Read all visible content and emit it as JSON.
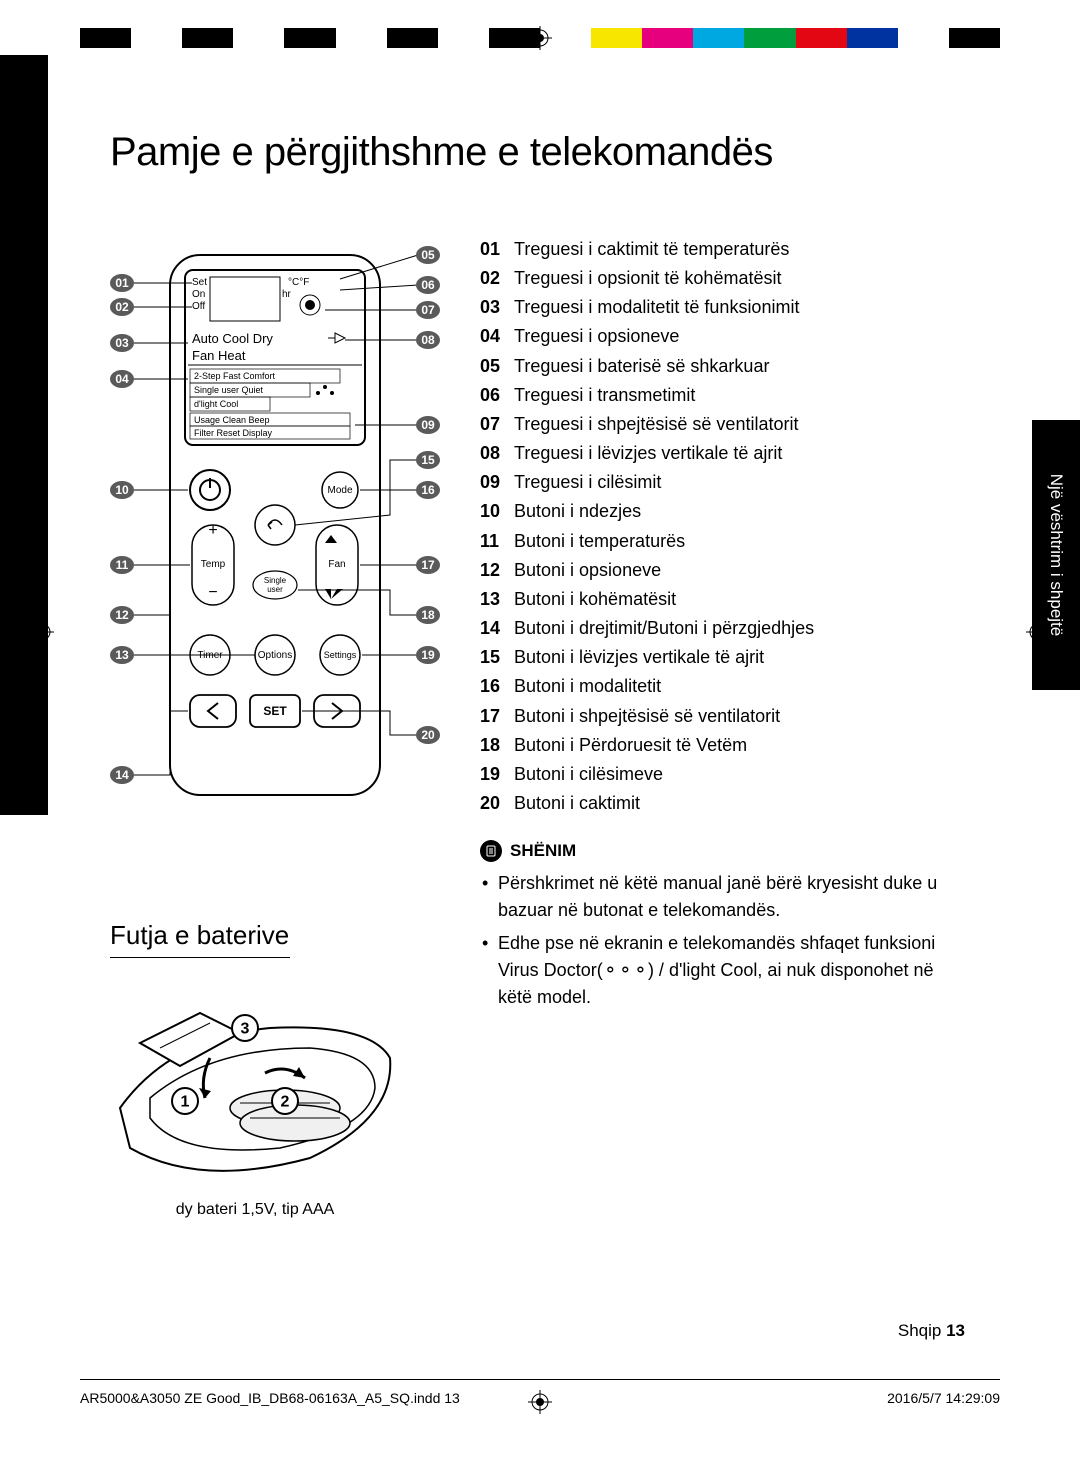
{
  "colorbar": [
    "#000000",
    "#ffffff",
    "#000000",
    "#ffffff",
    "#000000",
    "#ffffff",
    "#000000",
    "#ffffff",
    "#000000",
    "#ffffff",
    "#f7e600",
    "#e6007e",
    "#00a8e1",
    "#009e3d",
    "#e30613",
    "#0033a0",
    "#ffffff",
    "#000000"
  ],
  "title": "Pamje e përgjithshme e telekomandës",
  "side_tab": "Një vështrim i shpejtë",
  "subtitle": "Futja e baterive",
  "battery_caption": "dy bateri 1,5V, tip AAA",
  "display": {
    "line1_a": "Set",
    "line1_b": "°C°F",
    "line2_a": "On",
    "line2_b": "hr",
    "line3": "Off",
    "modes": "Auto Cool Dry",
    "modes2": "Fan   Heat",
    "opt1": "2-Step  Fast  Comfort",
    "opt2": "Single user  Quiet",
    "opt3": "d'light Cool",
    "opt4": "Usage   Clean   Beep",
    "opt5": "Filter Reset     Display"
  },
  "buttons": {
    "mode": "Mode",
    "temp": "Temp",
    "fan": "Fan",
    "single": "Single",
    "user": "user",
    "timer": "Timer",
    "options": "Options",
    "settings": "Settings",
    "set": "SET"
  },
  "legend": [
    {
      "n": "01",
      "t": "Treguesi i caktimit të temperaturës"
    },
    {
      "n": "02",
      "t": "Treguesi i opsionit të kohëmatësit"
    },
    {
      "n": "03",
      "t": "Treguesi i modalitetit të funksionimit"
    },
    {
      "n": "04",
      "t": "Treguesi i opsioneve"
    },
    {
      "n": "05",
      "t": "Treguesi i baterisë së shkarkuar"
    },
    {
      "n": "06",
      "t": "Treguesi i transmetimit"
    },
    {
      "n": "07",
      "t": "Treguesi i shpejtësisë së ventilatorit"
    },
    {
      "n": "08",
      "t": "Treguesi i lëvizjes vertikale të ajrit"
    },
    {
      "n": "09",
      "t": "Treguesi i cilësimit"
    },
    {
      "n": "10",
      "t": "Butoni i ndezjes"
    },
    {
      "n": "11",
      "t": "Butoni i temperaturës"
    },
    {
      "n": "12",
      "t": "Butoni i opsioneve"
    },
    {
      "n": "13",
      "t": "Butoni i kohëmatësit"
    },
    {
      "n": "14",
      "t": "Butoni i drejtimit/Butoni i përzgjedhjes"
    },
    {
      "n": "15",
      "t": "Butoni i lëvizjes vertikale të ajrit"
    },
    {
      "n": "16",
      "t": "Butoni i modalitetit"
    },
    {
      "n": "17",
      "t": "Butoni i shpejtësisë së ventilatorit"
    },
    {
      "n": "18",
      "t": "Butoni i Përdoruesit të Vetëm"
    },
    {
      "n": "19",
      "t": "Butoni i cilësimeve"
    },
    {
      "n": "20",
      "t": "Butoni i caktimit"
    }
  ],
  "note_label": "SHËNIM",
  "notes": [
    "Përshkrimet në këtë manual janë bërë kryesisht duke u bazuar në butonat e telekomandës.",
    "Edhe pse në ekranin e telekomandës shfaqet funksioni Virus Doctor(⚬⚬⚬) / d'light Cool, ai nuk disponohet në këtë model."
  ],
  "footer_lang": "Shqip ",
  "footer_page": "13",
  "indd_left": "AR5000&A3050 ZE Good_IB_DB68-06163A_A5_SQ.indd   13",
  "indd_right": "2016/5/7   14:29:09",
  "callouts_left": [
    "01",
    "02",
    "03",
    "04",
    "10",
    "11",
    "12",
    "13",
    "14"
  ],
  "callouts_right": [
    "05",
    "06",
    "07",
    "08",
    "09",
    "15",
    "16",
    "17",
    "18",
    "19",
    "20"
  ],
  "battery_bubbles": [
    "1",
    "2",
    "3"
  ]
}
